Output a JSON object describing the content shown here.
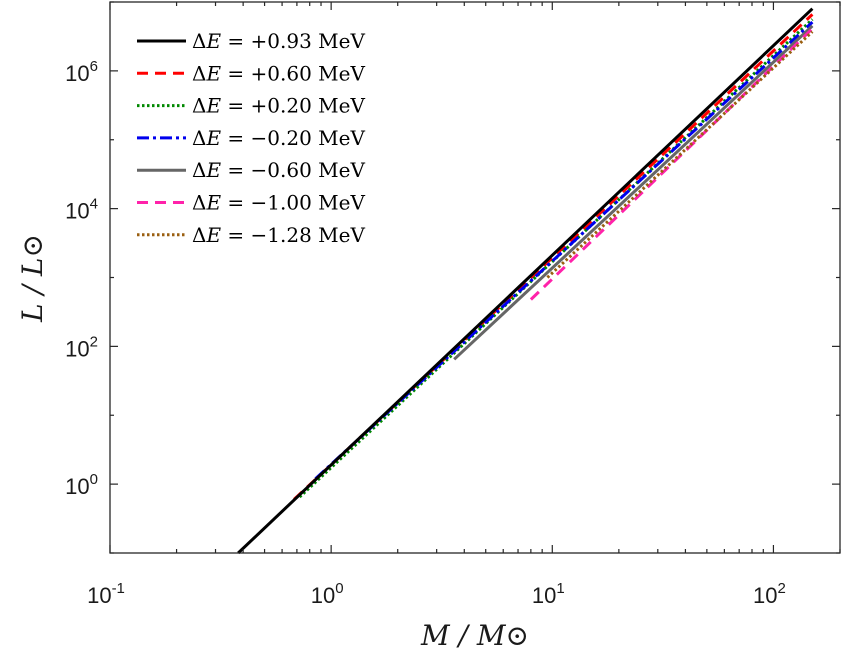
{
  "chart_data": {
    "type": "line",
    "title": "",
    "xlabel": "M / M⊙",
    "ylabel": "L / L⊙",
    "xscale": "log",
    "yscale": "log",
    "xlim": [
      0.1,
      200
    ],
    "ylim": [
      0.1,
      10000000
    ],
    "grid": false,
    "legend_position": "top-left",
    "x_ticks": [
      {
        "base": "10",
        "exp": "-1",
        "value": 0.1
      },
      {
        "base": "10",
        "exp": "0",
        "value": 1
      },
      {
        "base": "10",
        "exp": "1",
        "value": 10
      },
      {
        "base": "10",
        "exp": "2",
        "value": 100
      }
    ],
    "y_ticks": [
      {
        "base": "10",
        "exp": "0",
        "value": 1
      },
      {
        "base": "10",
        "exp": "2",
        "value": 100
      },
      {
        "base": "10",
        "exp": "4",
        "value": 10000
      },
      {
        "base": "10",
        "exp": "6",
        "value": 1000000
      }
    ],
    "series": [
      {
        "name": "ΔE = +0.93 MeV",
        "label_prefix": "Δ",
        "label_var": "E",
        "label_rest": " = +0.93 MeV",
        "color": "#000000",
        "dash": "",
        "width": 3,
        "x": [
          0.38,
          150
        ],
        "y": [
          0.1,
          8000000
        ]
      },
      {
        "name": "ΔE = +0.60 MeV",
        "label_prefix": "Δ",
        "label_var": "E",
        "label_rest": " = +0.60 MeV",
        "color": "#ff0000",
        "dash": "11,7",
        "width": 3,
        "x": [
          0.68,
          150
        ],
        "y": [
          0.6,
          6600000
        ]
      },
      {
        "name": "ΔE = +0.20 MeV",
        "label_prefix": "Δ",
        "label_var": "E",
        "label_rest": " = +0.20 MeV",
        "color": "#008800",
        "dash": "2.5,2.5",
        "width": 3,
        "x": [
          0.72,
          150
        ],
        "y": [
          0.65,
          5600000
        ]
      },
      {
        "name": "ΔE = −0.20 MeV",
        "label_prefix": "Δ",
        "label_var": "E",
        "label_rest": " = −0.20 MeV",
        "color": "#0000ee",
        "dash": "12,4,3,4",
        "width": 3,
        "x": [
          0.85,
          150
        ],
        "y": [
          1.2,
          5100000
        ]
      },
      {
        "name": "ΔE = −0.60 MeV",
        "label_prefix": "Δ",
        "label_var": "E",
        "label_rest": " = −0.60 MeV",
        "color": "#666666",
        "dash": "",
        "width": 3,
        "x": [
          3.6,
          150
        ],
        "y": [
          65,
          4500000
        ]
      },
      {
        "name": "ΔE = −1.00 MeV",
        "label_prefix": "Δ",
        "label_var": "E",
        "label_rest": " = −1.00 MeV",
        "color": "#ff22aa",
        "dash": "11,7",
        "width": 3,
        "x": [
          8.0,
          150
        ],
        "y": [
          480,
          4100000
        ]
      },
      {
        "name": "ΔE = −1.28 MeV",
        "label_prefix": "Δ",
        "label_var": "E",
        "label_rest": " = −1.28 MeV",
        "color": "#9a5f10",
        "dash": "2.5,2.5",
        "width": 3,
        "x": [
          9.5,
          150
        ],
        "y": [
          1000,
          3700000
        ]
      }
    ]
  }
}
